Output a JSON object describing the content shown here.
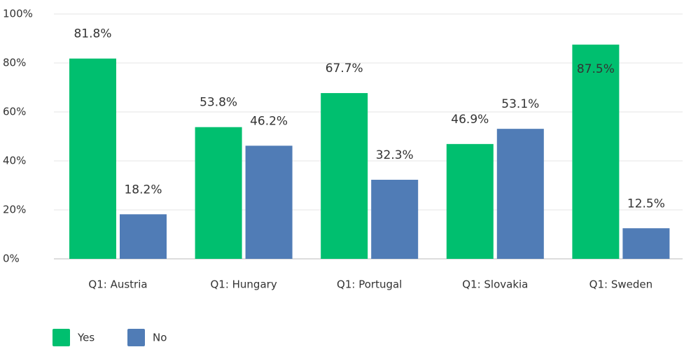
{
  "chart_data": {
    "type": "bar",
    "categories": [
      "Q1: Austria",
      "Q1: Hungary",
      "Q1: Portugal",
      "Q1: Slovakia",
      "Q1: Sweden"
    ],
    "series": [
      {
        "name": "Yes",
        "color": "#00bf6f",
        "values": [
          81.8,
          53.8,
          67.7,
          46.9,
          87.5
        ],
        "value_labels": [
          "81.8%",
          "53.8%",
          "67.7%",
          "46.9%",
          "87.5%"
        ]
      },
      {
        "name": "No",
        "color": "#507cb6",
        "values": [
          18.2,
          46.2,
          32.3,
          53.1,
          12.5
        ],
        "value_labels": [
          "18.2%",
          "46.2%",
          "32.3%",
          "53.1%",
          "12.5%"
        ]
      }
    ],
    "ylim": [
      0,
      100
    ],
    "yticks": [
      {
        "value": 0,
        "label": "0%"
      },
      {
        "value": 20,
        "label": "20%"
      },
      {
        "value": 40,
        "label": "40%"
      },
      {
        "value": 60,
        "label": "60%"
      },
      {
        "value": 80,
        "label": "80%"
      },
      {
        "value": 100,
        "label": "100%"
      }
    ],
    "grid": true
  }
}
